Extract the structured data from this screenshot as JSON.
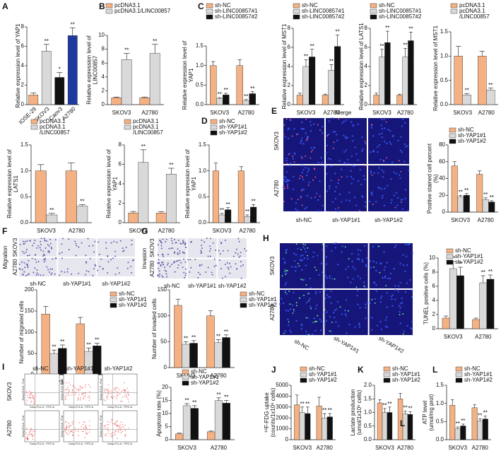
{
  "chart_data": [
    {
      "type": "bar",
      "panel": "A",
      "y_label": "Relative expression level of YAP1",
      "categories": [
        "IOSE-29",
        "SKOV3",
        "Caov3",
        "A2780"
      ],
      "series": [
        {
          "values": [
            1,
            5.5,
            2.8,
            7.1
          ],
          "errors": [
            0.2,
            0.7,
            0.5,
            0.8
          ],
          "colors": [
            "#f4b183",
            "#d9d9d9",
            "#111111",
            "#1f3a9e"
          ],
          "significance": [
            null,
            "**",
            "*",
            "**"
          ]
        }
      ],
      "ylim": [
        0,
        8
      ],
      "yticks": [
        0,
        2,
        4,
        6,
        8
      ]
    },
    {
      "type": "bar",
      "panel": "B",
      "y_label": "Relative expression level of\nLINC00857",
      "categories": [
        "SKOV3",
        "A2780"
      ],
      "series": [
        {
          "name": "pcDNA3.1",
          "color": "#f4b183",
          "values": [
            1,
            1
          ],
          "errors": [
            0.1,
            0.1
          ]
        },
        {
          "name": "pcDNA3.1/LINC00857",
          "color": "#d9d9d9",
          "values": [
            6.5,
            7.4
          ],
          "errors": [
            0.9,
            1.3
          ],
          "significance": [
            "**",
            "**"
          ]
        }
      ],
      "ylim": [
        0,
        10
      ],
      "yticks": [
        0,
        2,
        4,
        6,
        8,
        10
      ]
    },
    {
      "type": "bar",
      "panel": "C",
      "y_label": "Relative expression level of\nYAP1",
      "categories": [
        "SKOV3",
        "A2780"
      ],
      "series": [
        {
          "name": "sh-NC",
          "color": "#f4b183",
          "values": [
            1,
            1
          ],
          "errors": [
            0.1,
            0.15
          ]
        },
        {
          "name": "sh-LINC00857#1",
          "color": "#d9d9d9",
          "values": [
            0.15,
            0.1
          ],
          "errors": [
            0.03,
            0.03
          ],
          "significance": [
            "**",
            "**"
          ]
        },
        {
          "name": "sh-LINC00857#2",
          "color": "#111111",
          "values": [
            0.25,
            0.28
          ],
          "errors": [
            0.04,
            0.05
          ],
          "significance": [
            "**",
            "**"
          ]
        }
      ],
      "ylim": [
        0,
        1.5
      ],
      "yticks": [
        {
          "value": 0,
          "label": "0.0"
        },
        0.5,
        {
          "value": 1,
          "label": "1.0"
        },
        1.5
      ]
    },
    {
      "type": "bar",
      "y_label": "Relative expression level of MST1",
      "categories": [
        "SKOV3",
        "A2780"
      ],
      "series": [
        {
          "name": "sh-NC",
          "color": "#f4b183",
          "values": [
            1,
            1
          ],
          "errors": [
            0.2,
            0.1
          ]
        },
        {
          "name": "sh-LINC00857#1",
          "color": "#d9d9d9",
          "values": [
            4,
            3.6
          ],
          "errors": [
            0.7,
            0.6
          ],
          "significance": [
            "**",
            "**"
          ]
        },
        {
          "name": "sh-LINC00857#2",
          "color": "#111111",
          "values": [
            5,
            6.1
          ],
          "errors": [
            0.8,
            1.2
          ],
          "significance": [
            "**",
            "**"
          ]
        }
      ],
      "ylim": [
        0,
        8
      ],
      "yticks": [
        0,
        2,
        4,
        6,
        8
      ]
    },
    {
      "type": "bar",
      "y_label": "Relative expression level of LATS1",
      "categories": [
        "SKOV3",
        "A2780"
      ],
      "series": [
        {
          "name": "sh-NC",
          "color": "#f4b183",
          "values": [
            1,
            1
          ],
          "errors": [
            0.2,
            0.1
          ]
        },
        {
          "name": "sh-LINC00857#1",
          "color": "#d9d9d9",
          "values": [
            5,
            5
          ],
          "errors": [
            0.8,
            0.9
          ],
          "significance": [
            "**",
            "**"
          ]
        },
        {
          "name": "sh-LINC00857#2",
          "color": "#111111",
          "values": [
            6.5,
            6.7
          ],
          "errors": [
            1.2,
            0.9
          ],
          "significance": [
            "**",
            "**"
          ]
        }
      ],
      "ylim": [
        0,
        8
      ],
      "yticks": [
        0,
        2,
        4,
        6,
        8
      ]
    },
    {
      "type": "bar",
      "y_label": "Relative expression level of MST1",
      "categories": [
        "SKOV3",
        "A2780"
      ],
      "series": [
        {
          "name": "pcDNA3.1",
          "color": "#f4b183",
          "values": [
            1,
            1
          ],
          "errors": [
            0.2,
            0.1
          ]
        },
        {
          "name": "pcDNA3.1\n/LINC00857",
          "color": "#d9d9d9",
          "values": [
            0.2,
            0.3
          ],
          "errors": [
            0.03,
            0.04
          ],
          "significance": [
            "**",
            "**"
          ]
        }
      ],
      "ylim": [
        0,
        1.5
      ],
      "yticks": [
        {
          "value": 0,
          "label": "0.0"
        },
        0.5,
        {
          "value": 1,
          "label": "1.0"
        },
        1.5
      ]
    },
    {
      "type": "bar",
      "y_label": "Relative expression level of\nLATS1",
      "categories": [
        "SKOV3",
        "A2780"
      ],
      "series": [
        {
          "name": "pcDNA3.1",
          "color": "#f4b183",
          "values": [
            1,
            1
          ],
          "errors": [
            0.12,
            0.15
          ]
        },
        {
          "name": "pcDNA3.1\n/LINC00857",
          "color": "#d9d9d9",
          "values": [
            0.15,
            0.32
          ],
          "errors": [
            0.03,
            0.03
          ],
          "significance": [
            "**",
            "**"
          ]
        }
      ],
      "ylim": [
        0,
        1.5
      ],
      "yticks": [
        {
          "value": 0,
          "label": "0.0"
        },
        0.5,
        {
          "value": 1,
          "label": "1.0"
        },
        1.5
      ]
    },
    {
      "type": "bar",
      "y_label": "Relative expression level of\nYAP1",
      "categories": [
        "SKOV3",
        "A2780"
      ],
      "series": [
        {
          "name": "pcDNA3.1",
          "color": "#f4b183",
          "values": [
            1,
            1
          ],
          "errors": [
            0.15,
            0.15
          ]
        },
        {
          "name": "pcDNA3.1\n/LINC00857",
          "color": "#d9d9d9",
          "values": [
            6.2,
            5
          ],
          "errors": [
            1.3,
            0.6
          ],
          "significance": [
            "**",
            "**"
          ]
        }
      ],
      "ylim": [
        0,
        8
      ],
      "yticks": [
        0,
        2,
        4,
        6,
        8
      ]
    },
    {
      "type": "bar",
      "panel": "D",
      "y_label": "Relative expression level of\nYAP1",
      "categories": [
        "SKOV3",
        "A2780"
      ],
      "series": [
        {
          "name": "sh-NC",
          "color": "#f4b183",
          "values": [
            1,
            1
          ],
          "errors": [
            0.15,
            0.08
          ]
        },
        {
          "name": "sh-YAP1#1",
          "color": "#d9d9d9",
          "values": [
            0.15,
            0.12
          ],
          "errors": [
            0.03,
            0.03
          ],
          "significance": [
            "**",
            "**"
          ]
        },
        {
          "name": "sh-YAP1#2",
          "color": "#111111",
          "values": [
            0.25,
            0.3
          ],
          "errors": [
            0.04,
            0.05
          ],
          "significance": [
            "**",
            "**"
          ]
        }
      ],
      "ylim": [
        0,
        1.5
      ],
      "yticks": [
        {
          "value": 0,
          "label": "0.0"
        },
        0.5,
        {
          "value": 1,
          "label": "1.0"
        },
        1.5
      ]
    },
    {
      "type": "bar",
      "y_label": "Positive stained cell percent\n(%)",
      "categories": [
        "SKOV3",
        "A2780"
      ],
      "series": [
        {
          "name": "sh-NC",
          "color": "#f4b183",
          "values": [
            55,
            45
          ],
          "errors": [
            5,
            4
          ]
        },
        {
          "name": "sh-YAP1#1",
          "color": "#d9d9d9",
          "values": [
            18,
            15
          ],
          "errors": [
            2,
            2
          ],
          "significance": [
            "**",
            "**"
          ]
        },
        {
          "name": "sh-YAP1#2",
          "color": "#111111",
          "values": [
            20,
            12
          ],
          "errors": [
            2,
            1.5
          ],
          "significance": [
            "**",
            "**"
          ]
        }
      ],
      "ylim": [
        0,
        80
      ],
      "yticks": [
        0,
        20,
        40,
        60,
        80
      ]
    },
    {
      "type": "bar",
      "y_label": "Number of migrated cells",
      "categories": [
        "SKOV3",
        "A2780"
      ],
      "series": [
        {
          "name": "sh-NC",
          "color": "#f4b183",
          "values": [
            143,
            120
          ],
          "errors": [
            18,
            15
          ]
        },
        {
          "name": "sh-YAP1#1",
          "color": "#d9d9d9",
          "values": [
            50,
            55
          ],
          "errors": [
            8,
            8
          ],
          "significance": [
            "**",
            "**"
          ]
        },
        {
          "name": "sh-YAP1#2",
          "color": "#111111",
          "values": [
            62,
            68
          ],
          "errors": [
            8,
            6
          ],
          "significance": [
            "**",
            "**"
          ]
        }
      ],
      "ylim": [
        0,
        200
      ],
      "yticks": [
        0,
        50,
        100,
        150,
        200
      ]
    },
    {
      "type": "bar",
      "y_label": "Number of invaded cells",
      "categories": [
        "SKOV3",
        "A2780"
      ],
      "series": [
        {
          "name": "sh-NC",
          "color": "#f4b183",
          "values": [
            120,
            100
          ],
          "errors": [
            12,
            10
          ]
        },
        {
          "name": "sh-YAP1#1",
          "color": "#d9d9d9",
          "values": [
            45,
            48
          ],
          "errors": [
            5,
            6
          ],
          "significance": [
            "**",
            "**"
          ]
        },
        {
          "name": "sh-YAP1#2",
          "color": "#111111",
          "values": [
            47,
            58
          ],
          "errors": [
            5,
            5
          ],
          "significance": [
            "**",
            "**"
          ]
        }
      ],
      "ylim": [
        0,
        150
      ],
      "yticks": [
        0,
        50,
        100,
        150
      ]
    },
    {
      "type": "bar",
      "y_label": "TUNEL positive cells (%)",
      "categories": [
        "SKOV3",
        "A2780"
      ],
      "series": [
        {
          "name": "sh-NC",
          "color": "#f4b183",
          "values": [
            1.5,
            1.3
          ],
          "errors": [
            0.3,
            0.2
          ]
        },
        {
          "name": "sh-YAP1#1",
          "color": "#d9d9d9",
          "values": [
            8.5,
            6.5
          ],
          "errors": [
            1,
            1
          ],
          "significance": [
            "**",
            "**"
          ]
        },
        {
          "name": "sh-YAP1#2",
          "color": "#111111",
          "values": [
            7.5,
            7
          ],
          "errors": [
            1.2,
            0.6
          ],
          "significance": [
            "**",
            "**"
          ]
        }
      ],
      "ylim": [
        0,
        10
      ],
      "yticks": [
        0,
        2,
        4,
        6,
        8,
        10
      ]
    },
    {
      "type": "bar",
      "y_label": "Apoptosis rate (%)",
      "categories": [
        "SKOV3",
        "A2780"
      ],
      "series": [
        {
          "name": "sh-NC",
          "color": "#f4b183",
          "values": [
            2.2,
            3
          ],
          "errors": [
            0.3,
            0.3
          ]
        },
        {
          "name": "sh-YAP1#1",
          "color": "#d9d9d9",
          "values": [
            13,
            15
          ],
          "errors": [
            0.8,
            1
          ],
          "significance": [
            "**",
            "**"
          ]
        },
        {
          "name": "sh-YAP1#2",
          "color": "#111111",
          "values": [
            12,
            14
          ],
          "errors": [
            1,
            1
          ],
          "significance": [
            "**",
            "**"
          ]
        }
      ],
      "ylim": [
        0,
        20
      ],
      "yticks": [
        0,
        5,
        10,
        15,
        20
      ]
    },
    {
      "type": "bar",
      "panel": "J",
      "y_label": "¹⁸F-FDG uptake\n(counts/1x10⁶ cells)",
      "categories": [
        "SKOV3",
        "A2780"
      ],
      "series": [
        {
          "name": "sh-NC",
          "color": "#f4b183",
          "values": [
            3200,
            3100
          ],
          "errors": [
            900,
            800
          ]
        },
        {
          "name": "sh-YAP1#1",
          "color": "#d9d9d9",
          "values": [
            2500,
            2000
          ],
          "errors": [
            500,
            400
          ],
          "significance": [
            "**",
            "**"
          ]
        },
        {
          "name": "sh-YAP1#2",
          "color": "#111111",
          "values": [
            2400,
            2100
          ],
          "errors": [
            600,
            300
          ],
          "significance": [
            "**",
            "**"
          ]
        }
      ],
      "ylim": [
        0,
        5000
      ],
      "yticks": [
        0,
        1000,
        2000,
        3000,
        4000,
        5000
      ]
    },
    {
      "type": "bar",
      "panel": "K",
      "y_label": "Lactate production\n(umol/1x10⁶ cells)",
      "categories": [
        "SKOV3",
        "A2780"
      ],
      "series": [
        {
          "name": "sh-NC",
          "color": "#f4b183",
          "values": [
            1.35,
            1.5
          ],
          "errors": [
            0.12,
            0.2
          ]
        },
        {
          "name": "sh-YAP1#1",
          "color": "#d9d9d9",
          "values": [
            1.0,
            0.95
          ],
          "errors": [
            0.15,
            0.1
          ],
          "significance": [
            "**",
            "**"
          ]
        },
        {
          "name": "sh-YAP1#2",
          "color": "#111111",
          "values": [
            1.0,
            0.93
          ],
          "errors": [
            0.2,
            0.1
          ],
          "significance": [
            "**",
            "**"
          ]
        }
      ],
      "ylim": [
        0,
        2
      ],
      "yticks": [
        {
          "value": 0,
          "label": "0.0"
        },
        0.5,
        {
          "value": 1,
          "label": "1.0"
        },
        1.5,
        {
          "value": 2,
          "label": "2.0"
        }
      ]
    },
    {
      "type": "bar",
      "panel": "L",
      "y_label": "ATP level\n(umol/mg prot)",
      "categories": [
        "SKOV3",
        "A2780"
      ],
      "series": [
        {
          "name": "sh-NC",
          "color": "#f4b183",
          "values": [
            0.95,
            0.88
          ],
          "errors": [
            0.15,
            0.08
          ]
        },
        {
          "name": "sh-YAP1#1",
          "color": "#d9d9d9",
          "values": [
            0.3,
            0.52
          ],
          "errors": [
            0.05,
            0.06
          ],
          "significance": [
            "**",
            "**"
          ]
        },
        {
          "name": "sh-YAP1#2",
          "color": "#111111",
          "values": [
            0.38,
            0.57
          ],
          "errors": [
            0.05,
            0.08
          ],
          "significance": [
            "**",
            "**"
          ]
        }
      ],
      "ylim": [
        0,
        1.5
      ],
      "yticks": [
        {
          "value": 0,
          "label": "0.0"
        },
        0.5,
        {
          "value": 1,
          "label": "1.0"
        },
        1.5
      ]
    }
  ],
  "image_panels": [
    {
      "panel": "E",
      "title": "Merge",
      "rows": [
        "SKOV3",
        "A2780"
      ],
      "cols": [
        "sh-NC",
        "sh-YAP1#1",
        "sh-YAP1#2"
      ]
    },
    {
      "panel": "F",
      "side_label": "Migration",
      "rows": [
        "SKOV3",
        "A2780"
      ],
      "cols": [
        "sh-NC",
        "sh-YAP1#1",
        "sh-YAP1#2"
      ]
    },
    {
      "panel": "G",
      "side_label": "Invasion",
      "rows": [
        "SKOV3",
        "A2780"
      ],
      "cols": [
        "sh-NC",
        "sh-YAP1#1",
        "sh-YAP1#2"
      ]
    },
    {
      "panel": "H",
      "rows": [
        "SKOV3",
        "A2780"
      ],
      "cols": [
        "sh-NC",
        "sh-YAP1#1",
        "sh-YAP1#2"
      ]
    },
    {
      "panel": "I",
      "rows": [
        "SKOV3",
        "A2780"
      ],
      "cols": [
        "sh-NC",
        "sh-YAP1#1",
        "sh-YAP1#2"
      ],
      "x_label": "Comp-FL1-A :: FITC-A",
      "y_label": "Comp-FL3-A :: PI-A"
    }
  ]
}
